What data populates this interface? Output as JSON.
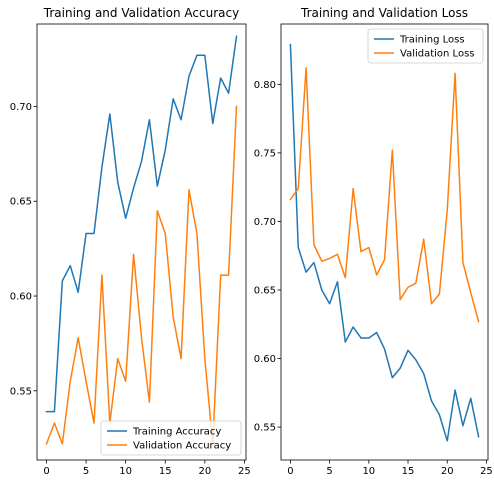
{
  "chart_data": [
    {
      "type": "line",
      "title": "Training and Validation Accuracy",
      "xlabel": "",
      "ylabel": "",
      "xlim": [
        -1.2,
        25.2
      ],
      "ylim": [
        0.5135,
        0.7435
      ],
      "xticks": [
        0,
        5,
        10,
        15,
        20,
        25
      ],
      "xtick_labels": [
        "0",
        "5",
        "10",
        "15",
        "20",
        "25"
      ],
      "yticks": [
        0.55,
        0.6,
        0.65,
        0.7
      ],
      "ytick_labels": [
        "0.55",
        "0.60",
        "0.65",
        "0.70"
      ],
      "legend_position": "lower-right",
      "grid": false,
      "x": [
        0,
        1,
        2,
        3,
        4,
        5,
        6,
        7,
        8,
        9,
        10,
        11,
        12,
        13,
        14,
        15,
        16,
        17,
        18,
        19,
        20,
        21,
        22,
        23,
        24
      ],
      "series": [
        {
          "name": "Training Accuracy",
          "color": "#1f77b4",
          "values": [
            0.539,
            0.539,
            0.608,
            0.616,
            0.602,
            0.633,
            0.633,
            0.668,
            0.696,
            0.66,
            0.641,
            0.657,
            0.671,
            0.693,
            0.658,
            0.677,
            0.704,
            0.693,
            0.716,
            0.727,
            0.727,
            0.691,
            0.715,
            0.707,
            0.737
          ]
        },
        {
          "name": "Validation Accuracy",
          "color": "#ff7f0e",
          "values": [
            0.522,
            0.533,
            0.522,
            0.555,
            0.578,
            0.555,
            0.533,
            0.611,
            0.533,
            0.567,
            0.555,
            0.622,
            0.578,
            0.544,
            0.645,
            0.633,
            0.589,
            0.567,
            0.656,
            0.633,
            0.567,
            0.522,
            0.611,
            0.611,
            0.7
          ]
        }
      ]
    },
    {
      "type": "line",
      "title": "Training and Validation Loss",
      "xlabel": "",
      "ylabel": "",
      "xlim": [
        -1.2,
        25.2
      ],
      "ylim": [
        0.526,
        0.844
      ],
      "xticks": [
        0,
        5,
        10,
        15,
        20,
        25
      ],
      "xtick_labels": [
        "0",
        "5",
        "10",
        "15",
        "20",
        "25"
      ],
      "yticks": [
        0.55,
        0.6,
        0.65,
        0.7,
        0.75,
        0.8
      ],
      "ytick_labels": [
        "0.55",
        "0.60",
        "0.65",
        "0.70",
        "0.75",
        "0.80"
      ],
      "legend_position": "upper-right",
      "grid": false,
      "x": [
        0,
        1,
        2,
        3,
        4,
        5,
        6,
        7,
        8,
        9,
        10,
        11,
        12,
        13,
        14,
        15,
        16,
        17,
        18,
        19,
        20,
        21,
        22,
        23,
        24
      ],
      "series": [
        {
          "name": "Training Loss",
          "color": "#1f77b4",
          "values": [
            0.829,
            0.681,
            0.663,
            0.67,
            0.65,
            0.64,
            0.656,
            0.612,
            0.623,
            0.615,
            0.615,
            0.619,
            0.607,
            0.586,
            0.593,
            0.606,
            0.599,
            0.589,
            0.569,
            0.559,
            0.54,
            0.577,
            0.551,
            0.571,
            0.543
          ]
        },
        {
          "name": "Validation Loss",
          "color": "#ff7f0e",
          "values": [
            0.716,
            0.724,
            0.812,
            0.683,
            0.671,
            0.673,
            0.676,
            0.659,
            0.724,
            0.678,
            0.681,
            0.661,
            0.672,
            0.752,
            0.643,
            0.652,
            0.655,
            0.687,
            0.64,
            0.647,
            0.708,
            0.808,
            0.67,
            0.648,
            0.627
          ]
        }
      ]
    }
  ]
}
